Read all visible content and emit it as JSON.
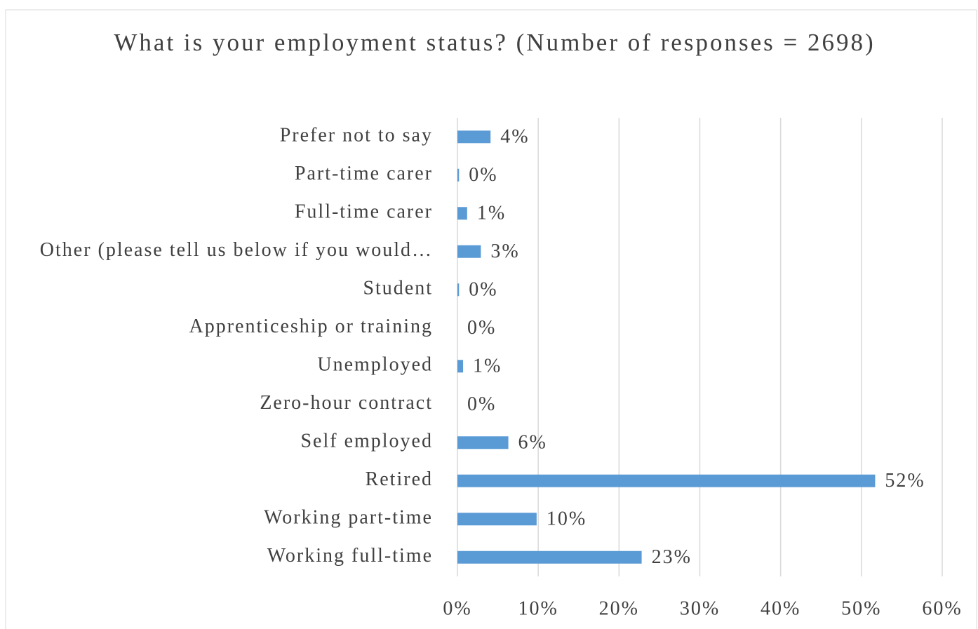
{
  "chart_data": {
    "type": "barh",
    "title": "What is your employment status? (Number of responses = 2698)",
    "categories": [
      "Prefer not to say",
      "Part-time carer",
      "Full-time carer",
      "Other (please tell us below if you would…",
      "Student",
      "Apprenticeship or training",
      "Unemployed",
      "Zero-hour contract",
      "Self employed",
      "Retired",
      "Working part-time",
      "Working full-time"
    ],
    "values": [
      4.1,
      0.2,
      1.2,
      2.9,
      0.2,
      0,
      0.7,
      0,
      6.3,
      51.7,
      9.8,
      22.8
    ],
    "value_labels": [
      "4%",
      "0%",
      "1%",
      "3%",
      "0%",
      "0%",
      "1%",
      "0%",
      "6%",
      "52%",
      "10%",
      "23%"
    ],
    "color": "#5b9bd5",
    "xlim": [
      0,
      60
    ],
    "xticks": [
      {
        "value": 0,
        "label": "0%"
      },
      {
        "value": 10,
        "label": "10%"
      },
      {
        "value": 20,
        "label": "20%"
      },
      {
        "value": 30,
        "label": "30%"
      },
      {
        "value": 40,
        "label": "40%"
      },
      {
        "value": 50,
        "label": "50%"
      },
      {
        "value": 60,
        "label": "60%"
      }
    ],
    "grid": true
  }
}
